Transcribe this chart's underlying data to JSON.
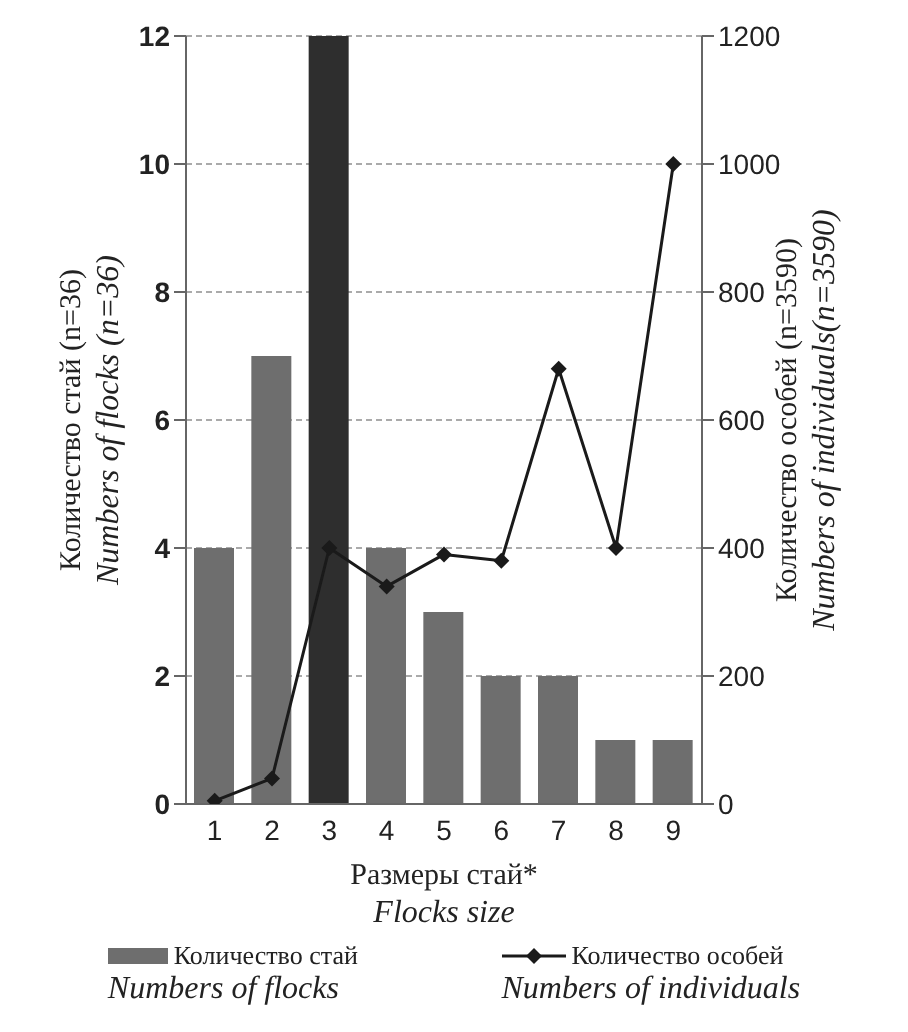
{
  "chart_data": {
    "type": "bar",
    "xlabel": "Размеры стай*\nFlocks size",
    "ylabel": "Количество стай (n=36)\nNumbers of flocks (n=36)",
    "y2label": "Количество особей (n=3590)\nNumbers of individuals(n=3590)",
    "categories": [
      "1",
      "2",
      "3",
      "4",
      "5",
      "6",
      "7",
      "8",
      "9"
    ],
    "series": [
      {
        "name": "Количество стай\nNumbers of flocks",
        "colors": [
          "#6e6e6e",
          "#6e6e6e",
          "#2e2e2e",
          "#6e6e6e",
          "#6e6e6e",
          "#6e6e6e",
          "#6e6e6e",
          "#6e6e6e",
          "#6e6e6e"
        ],
        "values": [
          4,
          7,
          12,
          4,
          3,
          2,
          2,
          1,
          1
        ]
      },
      {
        "name": "Количество особей\nNumbers of individuals",
        "type": "line",
        "axis": "y2",
        "color": "#1a1a1a",
        "marker": "diamond",
        "values": [
          5,
          40,
          400,
          340,
          390,
          380,
          680,
          400,
          1000
        ]
      }
    ],
    "ylim": [
      0,
      12
    ],
    "yticks": [
      0,
      2,
      4,
      6,
      8,
      10,
      12
    ],
    "y2lim": [
      0,
      1200
    ],
    "y2ticks": [
      0,
      200,
      400,
      600,
      800,
      1000,
      1200
    ],
    "grid": "y",
    "legend": "bottom"
  }
}
